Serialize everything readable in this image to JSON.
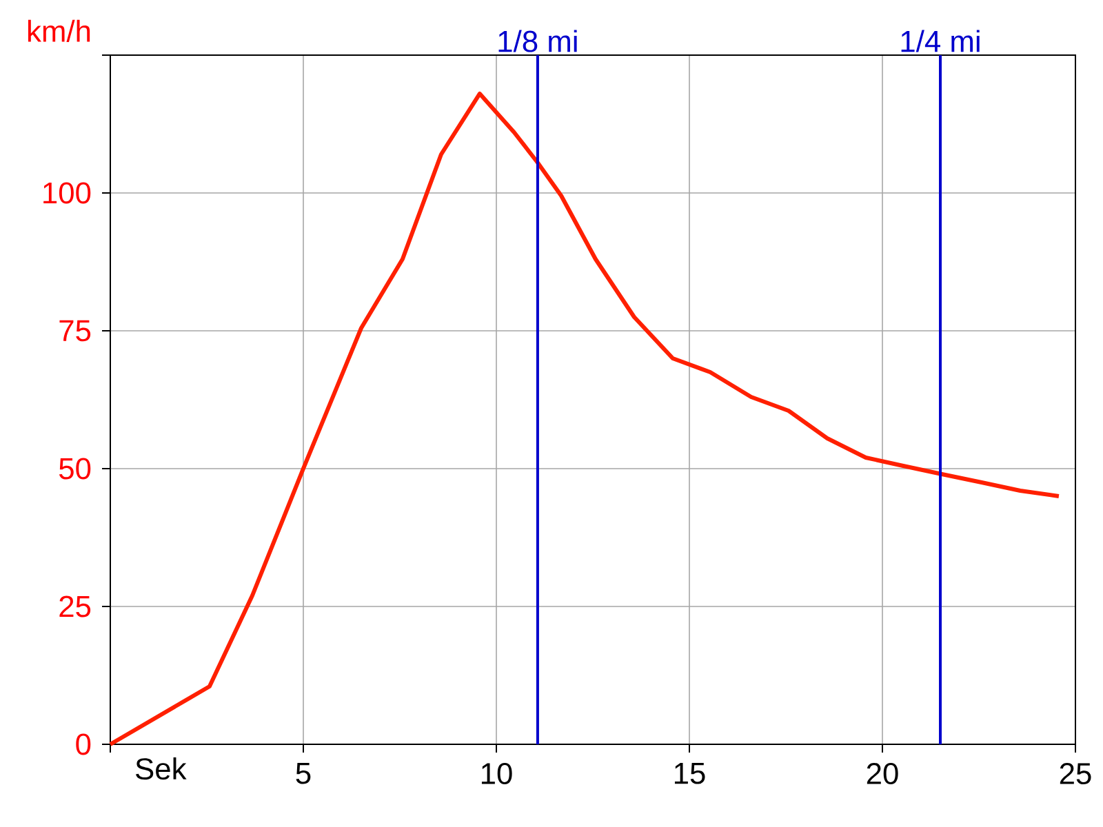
{
  "chart_data": {
    "type": "line",
    "xlabel": "Sek",
    "ylabel": "km/h",
    "x": [
      0,
      2.57,
      3.68,
      5,
      6.5,
      7.57,
      8.57,
      9.57,
      10.46,
      11.07,
      11.68,
      12.57,
      13.57,
      14.57,
      15.54,
      16.6,
      17.57,
      18.57,
      19.57,
      20.54,
      21.54,
      22.57,
      23.57,
      24.57
    ],
    "series": [
      {
        "color": "#ff2000",
        "values": [
          0,
          10.5,
          27,
          50,
          75.5,
          88,
          107,
          118,
          111,
          105.5,
          99.5,
          88,
          77.5,
          70,
          67.5,
          63,
          60.5,
          55.5,
          52,
          50.5,
          49,
          47.5,
          46,
          45
        ]
      }
    ],
    "xlim": [
      0,
      25
    ],
    "ylim": [
      0,
      125
    ],
    "xticks": [
      {
        "value": 0,
        "label": null
      },
      5,
      10,
      15,
      20,
      25
    ],
    "yticks": [
      0,
      25,
      50,
      75,
      100,
      {
        "value": 125,
        "label": null
      }
    ],
    "ref_lines": [
      {
        "axis": "x",
        "value": 11.07,
        "label": "1/8 mi",
        "color": "#0000cc"
      },
      {
        "axis": "x",
        "value": 21.5,
        "label": "1/4 mi",
        "color": "#0000cc"
      }
    ],
    "grid": true,
    "marker": "none",
    "line_style": "solid"
  }
}
